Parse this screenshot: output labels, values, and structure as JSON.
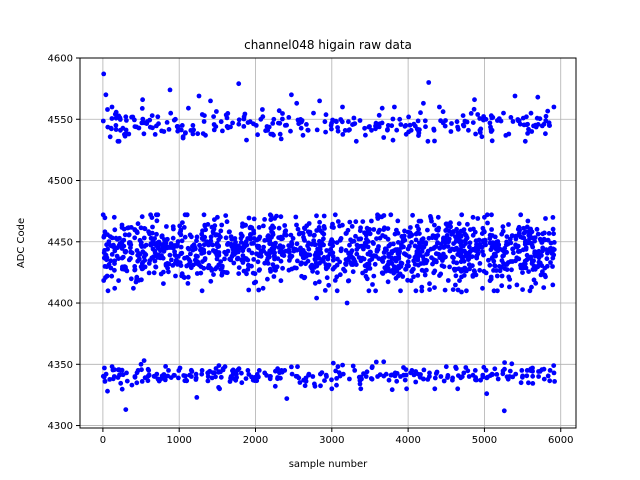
{
  "chart_data": {
    "type": "scatter",
    "title": "channel048 higain raw data",
    "xlabel": "sample number",
    "ylabel": "ADC Code",
    "xlim": [
      -300,
      6200
    ],
    "ylim": [
      4298,
      4600
    ],
    "x_ticks": [
      0,
      1000,
      2000,
      3000,
      4000,
      5000,
      6000
    ],
    "y_ticks": [
      4300,
      4350,
      4400,
      4450,
      4500,
      4550,
      4600
    ],
    "grid": true,
    "marker_color": "#0000ff",
    "x_range": [
      0,
      5920
    ],
    "series": [
      {
        "points": [
          [
            10,
            4587
          ],
          [
            40,
            4570
          ],
          [
            60,
            4558
          ],
          [
            120,
            4560
          ],
          [
            170,
            4545
          ],
          [
            230,
            4541
          ],
          [
            300,
            4552
          ],
          [
            340,
            4538
          ],
          [
            420,
            4544
          ],
          [
            520,
            4566
          ],
          [
            580,
            4548
          ],
          [
            650,
            4543
          ],
          [
            720,
            4552
          ],
          [
            800,
            4540
          ],
          [
            880,
            4574
          ],
          [
            950,
            4550
          ],
          [
            1040,
            4545
          ],
          [
            1120,
            4559
          ],
          [
            1180,
            4545
          ],
          [
            1260,
            4569
          ],
          [
            1330,
            4553
          ],
          [
            1410,
            4565
          ],
          [
            1480,
            4544
          ],
          [
            1550,
            4548
          ],
          [
            1640,
            4543
          ],
          [
            1700,
            4547
          ],
          [
            1780,
            4579
          ],
          [
            1850,
            4552
          ],
          [
            1930,
            4548
          ],
          [
            2010,
            4545
          ],
          [
            2090,
            4558
          ],
          [
            2160,
            4541
          ],
          [
            2240,
            4550
          ],
          [
            2310,
            4557
          ],
          [
            2390,
            4545
          ],
          [
            2470,
            4570
          ],
          [
            2540,
            4563
          ],
          [
            2610,
            4549
          ],
          [
            2690,
            4541
          ],
          [
            2760,
            4555
          ],
          [
            2840,
            4565
          ],
          [
            2910,
            4548
          ],
          [
            2990,
            4545
          ],
          [
            3060,
            4548
          ],
          [
            3140,
            4560
          ],
          [
            3220,
            4541
          ],
          [
            3290,
            4551
          ],
          [
            3370,
            4549
          ],
          [
            3440,
            4537
          ],
          [
            3520,
            4541
          ],
          [
            3590,
            4545
          ],
          [
            3660,
            4559
          ],
          [
            3740,
            4545
          ],
          [
            3820,
            4560
          ],
          [
            3890,
            4550
          ],
          [
            3970,
            4545
          ],
          [
            4040,
            4541
          ],
          [
            4120,
            4542
          ],
          [
            4200,
            4563
          ],
          [
            4270,
            4580
          ],
          [
            4340,
            4541
          ],
          [
            4410,
            4560
          ],
          [
            4490,
            4549
          ],
          [
            4560,
            4540
          ],
          [
            4640,
            4548
          ],
          [
            4720,
            4553
          ],
          [
            4790,
            4541
          ],
          [
            4870,
            4566
          ],
          [
            4940,
            4541
          ],
          [
            5020,
            4550
          ],
          [
            5100,
            4541
          ],
          [
            5170,
            4549
          ],
          [
            5250,
            4555
          ],
          [
            5320,
            4538
          ],
          [
            5400,
            4569
          ],
          [
            5470,
            4546
          ],
          [
            5550,
            4552
          ],
          [
            5620,
            4540
          ],
          [
            5700,
            4568
          ],
          [
            5780,
            4546
          ],
          [
            5850,
            4545
          ],
          [
            5910,
            4560
          ],
          [
            150,
            4470
          ],
          [
            700,
            4472
          ],
          [
            1500,
            4470
          ],
          [
            2200,
            4468
          ],
          [
            2900,
            4471
          ],
          [
            3600,
            4470
          ],
          [
            4300,
            4469
          ],
          [
            5000,
            4470
          ],
          [
            5800,
            4469
          ],
          [
            400,
            4412
          ],
          [
            1300,
            4410
          ],
          [
            2100,
            4412
          ],
          [
            2800,
            4404
          ],
          [
            3200,
            4400
          ],
          [
            3900,
            4410
          ],
          [
            4700,
            4409
          ],
          [
            5500,
            4411
          ],
          [
            20,
            4347
          ],
          [
            60,
            4328
          ],
          [
            150,
            4340
          ],
          [
            240,
            4345
          ],
          [
            300,
            4313
          ],
          [
            380,
            4333
          ],
          [
            420,
            4340
          ],
          [
            500,
            4350
          ],
          [
            540,
            4353
          ],
          [
            600,
            4345
          ],
          [
            680,
            4340
          ],
          [
            760,
            4338
          ],
          [
            860,
            4345
          ],
          [
            930,
            4341
          ],
          [
            1010,
            4347
          ],
          [
            1090,
            4337
          ],
          [
            1160,
            4340
          ],
          [
            1230,
            4323
          ],
          [
            1300,
            4345
          ],
          [
            1380,
            4340
          ],
          [
            1460,
            4343
          ],
          [
            1530,
            4330
          ],
          [
            1600,
            4348
          ],
          [
            1680,
            4340
          ],
          [
            1750,
            4342
          ],
          [
            1820,
            4335
          ],
          [
            1900,
            4345
          ],
          [
            1970,
            4337
          ],
          [
            2050,
            4345
          ],
          [
            2120,
            4343
          ],
          [
            2190,
            4340
          ],
          [
            2260,
            4332
          ],
          [
            2340,
            4345
          ],
          [
            2410,
            4322
          ],
          [
            2480,
            4342
          ],
          [
            2550,
            4348
          ],
          [
            2630,
            4337
          ],
          [
            2700,
            4342
          ],
          [
            2780,
            4332
          ],
          [
            2850,
            4342
          ],
          [
            2930,
            4340
          ],
          [
            3000,
            4330
          ],
          [
            3080,
            4348
          ],
          [
            3150,
            4342
          ],
          [
            3230,
            4338
          ],
          [
            3300,
            4345
          ],
          [
            3380,
            4330
          ],
          [
            3450,
            4340
          ],
          [
            3530,
            4348
          ],
          [
            3600,
            4340
          ],
          [
            3680,
            4352
          ],
          [
            3750,
            4337
          ],
          [
            3830,
            4343
          ],
          [
            3900,
            4340
          ],
          [
            3980,
            4330
          ],
          [
            4050,
            4345
          ],
          [
            4130,
            4342
          ],
          [
            4200,
            4338
          ],
          [
            4280,
            4343
          ],
          [
            4350,
            4330
          ],
          [
            4430,
            4340
          ],
          [
            4500,
            4348
          ],
          [
            4580,
            4337
          ],
          [
            4650,
            4330
          ],
          [
            4730,
            4343
          ],
          [
            4800,
            4340
          ],
          [
            4880,
            4345
          ],
          [
            4950,
            4337
          ],
          [
            5030,
            4326
          ],
          [
            5100,
            4342
          ],
          [
            5180,
            4338
          ],
          [
            5260,
            4312
          ],
          [
            5330,
            4340
          ],
          [
            5410,
            4342
          ],
          [
            5480,
            4335
          ],
          [
            5560,
            4345
          ],
          [
            5630,
            4347
          ],
          [
            5710,
            4340
          ],
          [
            5780,
            4346
          ],
          [
            5860,
            4345
          ],
          [
            5920,
            4336
          ]
        ]
      }
    ]
  }
}
